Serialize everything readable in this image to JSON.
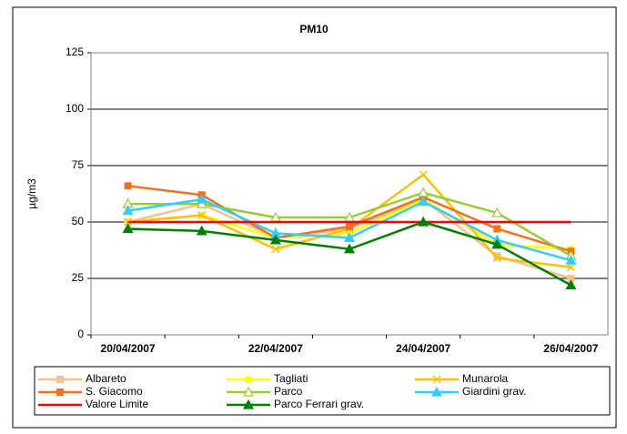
{
  "chart_data": {
    "type": "line",
    "title": "PM10",
    "y_label": "µg/m3",
    "categories": [
      "20/04/2007",
      null,
      "22/04/2007",
      null,
      "24/04/2007",
      null,
      "26/04/2007"
    ],
    "ylim": [
      0,
      125
    ],
    "yticks": [
      0,
      25,
      50,
      75,
      100,
      125
    ],
    "grid": true,
    "legend": "bottom",
    "series": [
      {
        "name": "Albareto",
        "color": "#f9bf8f",
        "marker": "square",
        "values": [
          50,
          58,
          43,
          47,
          60,
          35,
          25
        ]
      },
      {
        "name": "Tagliati",
        "color": "#ffff00",
        "marker": "circle",
        "values": [
          50,
          53,
          43,
          45,
          60,
          40,
          38
        ]
      },
      {
        "name": "Munarola",
        "color": "#ffc000",
        "marker": "x",
        "values": [
          50,
          53,
          38,
          47,
          71,
          34,
          30
        ]
      },
      {
        "name": "S. Giacomo",
        "color": "#f36f21",
        "marker": "square",
        "values": [
          66,
          62,
          43,
          48,
          61,
          47,
          37
        ]
      },
      {
        "name": "Parco",
        "color": "#99cc33",
        "marker": "triangle-open",
        "values": [
          58,
          58,
          52,
          52,
          63,
          54,
          35
        ]
      },
      {
        "name": "Giardini grav.",
        "color": "#33ccff",
        "marker": "triangle",
        "values": [
          55,
          60,
          45,
          43,
          59,
          42,
          33
        ]
      },
      {
        "name": "Valore Limite",
        "color": "#ff0000",
        "marker": "none",
        "values": [
          50,
          50,
          50,
          50,
          50,
          50,
          50
        ]
      },
      {
        "name": "Parco Ferrari grav.",
        "color": "#008000",
        "marker": "triangle",
        "values": [
          47,
          46,
          42,
          38,
          50,
          40,
          22
        ]
      }
    ]
  }
}
